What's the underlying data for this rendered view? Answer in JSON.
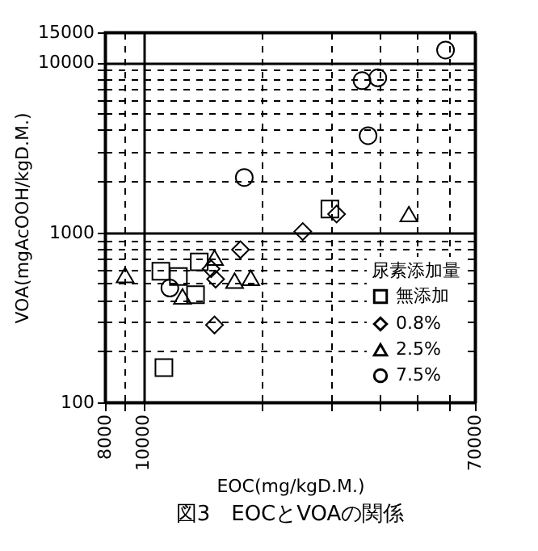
{
  "chart_data": {
    "type": "scatter",
    "title": "図3　EOCとVOAの関係",
    "xlabel": "EOC(mg/kgD.M.)",
    "ylabel": "VOA(mgAcOOH/kgD.M.)",
    "legend_title": "尿素添加量",
    "log": "xy",
    "grid": true,
    "legend": "bottom right",
    "xlim": [
      8000,
      70000
    ],
    "xticks": [
      8000,
      {
        "value": 9000,
        "label": null
      },
      10000,
      {
        "value": 20000,
        "label": null
      },
      {
        "value": 30000,
        "label": null
      },
      {
        "value": 40000,
        "label": null
      },
      {
        "value": 50000,
        "label": null
      },
      {
        "value": 60000,
        "label": null
      },
      70000
    ],
    "ylim": [
      100,
      15000
    ],
    "yticks": [
      100,
      {
        "value": 200,
        "label": null
      },
      {
        "value": 300,
        "label": null
      },
      {
        "value": 400,
        "label": null
      },
      {
        "value": 500,
        "label": null
      },
      {
        "value": 600,
        "label": null
      },
      {
        "value": 700,
        "label": null
      },
      {
        "value": 800,
        "label": null
      },
      {
        "value": 900,
        "label": null
      },
      1000,
      {
        "value": 2000,
        "label": null
      },
      {
        "value": 3000,
        "label": null
      },
      {
        "value": 4000,
        "label": null
      },
      {
        "value": 5000,
        "label": null
      },
      {
        "value": 6000,
        "label": null
      },
      {
        "value": 7000,
        "label": null
      },
      {
        "value": 8000,
        "label": null
      },
      {
        "value": 9000,
        "label": null
      },
      10000,
      15000
    ],
    "series": [
      {
        "name": "無添加",
        "color": "#000000",
        "marker": "square",
        "x": [
          29900,
          13900,
          11100,
          12300,
          13600,
          11300
        ],
        "values": [
          1370,
          670,
          590,
          550,
          430,
          160
        ]
      },
      {
        "name": "0.8%",
        "color": "#000000",
        "marker": "diamond",
        "x": [
          31100,
          25500,
          17700,
          14900,
          15300,
          15200
        ],
        "values": [
          1280,
          1010,
          790,
          610,
          530,
          285
        ]
      },
      {
        "name": "2.5%",
        "color": "#000000",
        "marker": "triangle",
        "x": [
          47500,
          9000,
          15200,
          17100,
          18800,
          12600
        ],
        "values": [
          1280,
          560,
          710,
          520,
          540,
          420
        ]
      },
      {
        "name": "7.5%",
        "color": "#000000",
        "marker": "circle",
        "x": [
          58900,
          36100,
          39600,
          37400,
          18100,
          11700
        ],
        "values": [
          11800,
          7800,
          8100,
          3700,
          2100,
          470
        ]
      }
    ]
  }
}
